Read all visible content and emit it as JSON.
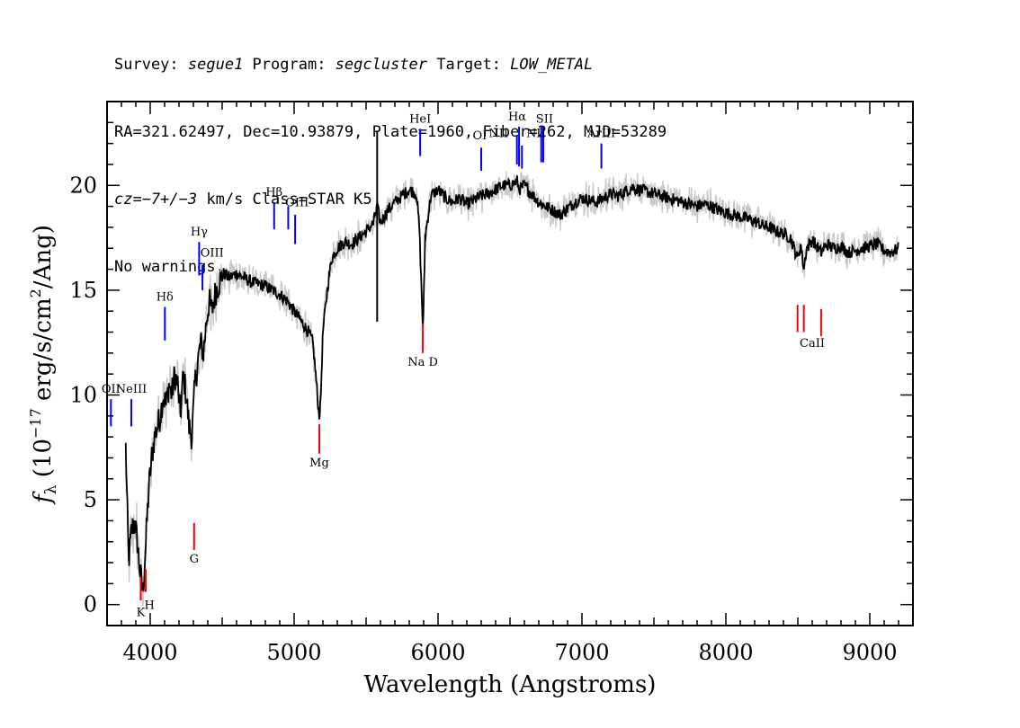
{
  "header": {
    "line1": {
      "survey_label": "Survey: ",
      "survey_value": "segue1",
      "program_label": " Program: ",
      "program_value": "segcluster",
      "target_label": " Target: ",
      "target_value": "LOW_METAL"
    },
    "line2": "RA=321.62497, Dec=10.93879, Plate=1960, Fiber=262, MJD=53289",
    "line3": {
      "cz_value": "cz=−7+/−3",
      "cz_rest": " km/s Class=STAR K5"
    },
    "line4": "No warnings."
  },
  "chart_data": {
    "type": "line",
    "xlabel": "Wavelength (Angstroms)",
    "ylabel": "f_λ (10^-17 erg/s/cm^2/Ang)",
    "xlim": [
      3700,
      9300
    ],
    "ylim": [
      -1,
      24
    ],
    "x_ticks": [
      4000,
      5000,
      6000,
      7000,
      8000,
      9000
    ],
    "y_ticks": [
      0,
      5,
      10,
      15,
      20
    ],
    "colors": {
      "spectrum": "#000000",
      "error_band": "#c8c8c8",
      "emission": "#0000ff",
      "absorption": "#ff0000"
    },
    "series": [
      {
        "x": [
          3830,
          3850,
          3870,
          3890,
          3910,
          3930,
          3950,
          3970,
          3990,
          4010,
          4030,
          4050,
          4070,
          4090,
          4110,
          4130,
          4150,
          4170,
          4190,
          4210,
          4230,
          4250,
          4270,
          4290,
          4310,
          4330,
          4350,
          4370,
          4390,
          4410,
          4430,
          4450,
          4470,
          4490,
          4510,
          4550,
          4600,
          4650,
          4700,
          4750,
          4800,
          4850,
          4900,
          4950,
          5000,
          5050,
          5100,
          5130,
          5150,
          5167,
          5175,
          5183,
          5200,
          5230,
          5260,
          5300,
          5350,
          5400,
          5450,
          5500,
          5550,
          5577,
          5600,
          5650,
          5700,
          5750,
          5800,
          5850,
          5870,
          5890,
          5896,
          5910,
          5950,
          6000,
          6050,
          6100,
          6150,
          6200,
          6250,
          6300,
          6350,
          6400,
          6450,
          6500,
          6550,
          6563,
          6600,
          6650,
          6700,
          6750,
          6800,
          6850,
          6900,
          6950,
          7000,
          7050,
          7100,
          7150,
          7200,
          7250,
          7300,
          7350,
          7400,
          7450,
          7500,
          7550,
          7600,
          7650,
          7700,
          7750,
          7800,
          7850,
          7900,
          7950,
          8000,
          8050,
          8100,
          8150,
          8200,
          8250,
          8300,
          8350,
          8400,
          8450,
          8498,
          8520,
          8542,
          8560,
          8600,
          8662,
          8700,
          8750,
          8800,
          8850,
          8900,
          8950,
          9000,
          9050,
          9100,
          9150,
          9200
        ],
        "y": [
          7.5,
          2.0,
          3.5,
          4.0,
          3.0,
          1.5,
          0.6,
          3.0,
          5.5,
          7.0,
          8.0,
          8.5,
          9.0,
          10.0,
          9.5,
          10.5,
          10.0,
          11.0,
          10.5,
          9.0,
          11.0,
          10.0,
          8.5,
          8.0,
          10.5,
          11.5,
          12.5,
          12.0,
          13.5,
          14.5,
          14.0,
          14.8,
          15.2,
          15.5,
          15.8,
          15.6,
          15.8,
          15.6,
          15.4,
          15.3,
          15.2,
          15.0,
          14.8,
          14.5,
          14.0,
          13.5,
          13.0,
          12.5,
          11.0,
          9.5,
          9.0,
          9.5,
          13.0,
          15.0,
          16.5,
          17.0,
          17.3,
          17.2,
          17.5,
          17.8,
          18.2,
          19.0,
          18.2,
          18.8,
          19.2,
          19.5,
          19.8,
          19.6,
          18.0,
          14.0,
          13.0,
          17.5,
          19.5,
          19.8,
          19.4,
          19.2,
          19.4,
          19.1,
          19.3,
          19.5,
          19.6,
          19.8,
          20.0,
          20.0,
          20.2,
          19.8,
          20.0,
          19.6,
          19.2,
          19.0,
          18.8,
          18.6,
          18.9,
          19.2,
          19.4,
          19.3,
          19.2,
          19.4,
          19.6,
          19.5,
          19.7,
          19.9,
          19.8,
          19.7,
          19.6,
          19.5,
          19.4,
          19.3,
          19.2,
          19.1,
          19.0,
          19.1,
          19.0,
          18.8,
          18.7,
          18.6,
          18.5,
          18.4,
          18.3,
          18.1,
          18.0,
          17.8,
          17.7,
          17.5,
          16.5,
          17.2,
          16.0,
          17.0,
          17.4,
          16.8,
          17.2,
          17.0,
          17.1,
          16.8,
          16.9,
          17.0,
          17.1,
          17.2,
          16.9,
          16.8,
          17.0
        ]
      }
    ],
    "line_markers": [
      {
        "name": "OII",
        "x": 3727,
        "kind": "emission",
        "y_bottom": 8.5,
        "y_top": 9.8
      },
      {
        "name": "NeIII",
        "x": 3869,
        "kind": "emission",
        "y_bottom": 8.5,
        "y_top": 9.8
      },
      {
        "name": "K",
        "x": 3934,
        "kind": "absorption",
        "y_bottom": 0.2,
        "y_top": 1.3
      },
      {
        "name": "H",
        "x": 3969,
        "kind": "absorption",
        "y_bottom": 0.6,
        "y_top": 1.7
      },
      {
        "name": "Hδ",
        "x": 4102,
        "kind": "emission",
        "y_bottom": 12.6,
        "y_top": 14.2
      },
      {
        "name": "G",
        "x": 4305,
        "kind": "absorption",
        "y_bottom": 2.6,
        "y_top": 3.9
      },
      {
        "name": "Hγ",
        "x": 4340,
        "kind": "emission",
        "y_bottom": 15.7,
        "y_top": 17.3
      },
      {
        "name": "OIII",
        "x": 4363,
        "kind": "emission",
        "y_bottom": 15.0,
        "y_top": 16.2
      },
      {
        "name": "Hβ",
        "x": 4861,
        "kind": "emission",
        "y_bottom": 17.9,
        "y_top": 19.2
      },
      {
        "name": "OIII",
        "x": 4959,
        "kind": "emission",
        "y_bottom": 17.9,
        "y_top": 19.0
      },
      {
        "name": "OIII",
        "x": 5007,
        "kind": "emission",
        "y_bottom": 17.2,
        "y_top": 18.6
      },
      {
        "name": "Mg",
        "x": 5175,
        "kind": "absorption",
        "y_bottom": 7.2,
        "y_top": 8.6
      },
      {
        "name": "HeI",
        "x": 5876,
        "kind": "emission",
        "y_bottom": 21.4,
        "y_top": 22.7
      },
      {
        "name": "Na D",
        "x": 5894,
        "kind": "absorption",
        "y_bottom": 12.0,
        "y_top": 13.4
      },
      {
        "name": "OI",
        "x": 6300,
        "kind": "emission",
        "y_bottom": 20.7,
        "y_top": 21.8
      },
      {
        "name": "NII",
        "x": 6548,
        "kind": "emission",
        "y_bottom": 21.0,
        "y_top": 22.4
      },
      {
        "name": "Hα",
        "x": 6563,
        "kind": "emission",
        "y_bottom": 20.9,
        "y_top": 22.8
      },
      {
        "name": "NII",
        "x": 6583,
        "kind": "emission",
        "y_bottom": 20.8,
        "y_top": 21.9
      },
      {
        "name": "SII",
        "x": 6717,
        "kind": "emission",
        "y_bottom": 21.1,
        "y_top": 22.8
      },
      {
        "name": "SII",
        "x": 6731,
        "kind": "emission",
        "y_bottom": 21.1,
        "y_top": 22.8
      },
      {
        "name": "ArIII",
        "x": 7135,
        "kind": "emission",
        "y_bottom": 20.8,
        "y_top": 22.0
      },
      {
        "name": "CaII",
        "x": 8498,
        "kind": "absorption",
        "y_bottom": 13.0,
        "y_top": 14.3
      },
      {
        "name": "CaII",
        "x": 8542,
        "kind": "absorption",
        "y_bottom": 13.0,
        "y_top": 14.3
      },
      {
        "name": "CaII",
        "x": 8662,
        "kind": "absorption",
        "y_bottom": 12.8,
        "y_top": 14.1
      }
    ],
    "marker_labels": [
      {
        "text": "OII",
        "x": 3727,
        "y": 10.1,
        "kind": "emission"
      },
      {
        "text": "NeIII",
        "x": 3869,
        "y": 10.1,
        "kind": "emission"
      },
      {
        "text": "K",
        "x": 3934,
        "y": -0.55,
        "kind": "absorption"
      },
      {
        "text": "H",
        "x": 3995,
        "y": -0.2,
        "kind": "absorption"
      },
      {
        "text": "Hδ",
        "x": 4102,
        "y": 14.5,
        "kind": "emission"
      },
      {
        "text": "G",
        "x": 4305,
        "y": 2.0,
        "kind": "absorption"
      },
      {
        "text": "Hγ",
        "x": 4340,
        "y": 17.6,
        "kind": "emission"
      },
      {
        "text": "OIII",
        "x": 4430,
        "y": 16.6,
        "kind": "emission"
      },
      {
        "text": "Hβ",
        "x": 4861,
        "y": 19.5,
        "kind": "emission"
      },
      {
        "text": "OIII",
        "x": 5020,
        "y": 19.0,
        "kind": "emission"
      },
      {
        "text": "Mg",
        "x": 5175,
        "y": 6.6,
        "kind": "absorption"
      },
      {
        "text": "HeI",
        "x": 5876,
        "y": 23.0,
        "kind": "emission"
      },
      {
        "text": "Na D",
        "x": 5894,
        "y": 11.4,
        "kind": "absorption"
      },
      {
        "text": "OI",
        "x": 6290,
        "y": 22.2,
        "kind": "emission"
      },
      {
        "text": "NII",
        "x": 6420,
        "y": 22.3,
        "kind": "emission"
      },
      {
        "text": "Hα",
        "x": 6550,
        "y": 23.1,
        "kind": "emission"
      },
      {
        "text": "NII",
        "x": 6680,
        "y": 22.3,
        "kind": "emission"
      },
      {
        "text": "SII",
        "x": 6740,
        "y": 23.0,
        "kind": "emission"
      },
      {
        "text": "ArIII",
        "x": 7135,
        "y": 22.3,
        "kind": "emission"
      },
      {
        "text": "CaII",
        "x": 8600,
        "y": 12.3,
        "kind": "absorption"
      }
    ]
  }
}
